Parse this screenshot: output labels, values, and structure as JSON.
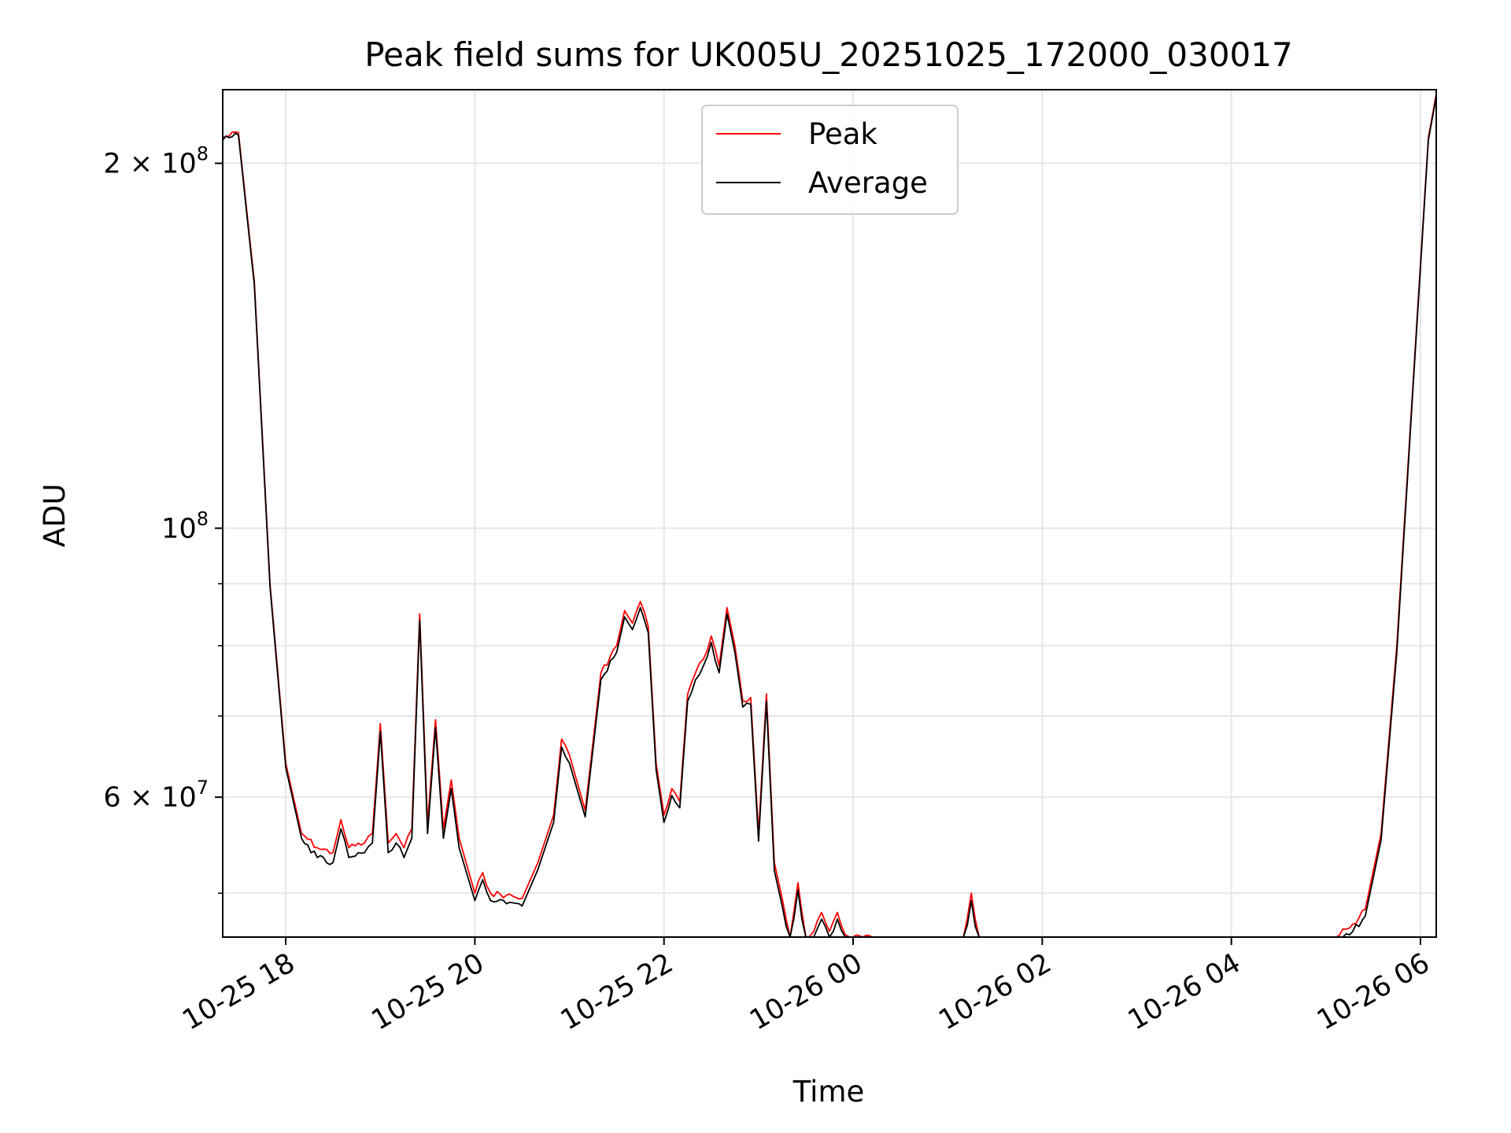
{
  "chart_data": {
    "type": "line",
    "title": "Peak field sums for UK005U_20251025_172000_030017",
    "xlabel": "Time",
    "ylabel": "ADU",
    "yscale": "log",
    "ylim": [
      46000000,
      230000000
    ],
    "xlim": [
      "2025-10-25 17:20",
      "2025-10-26 06:10"
    ],
    "grid": true,
    "legend_position": "top-center",
    "x_ticks": [
      {
        "t": "2025-10-25 18:00",
        "label": "10-25 18"
      },
      {
        "t": "2025-10-25 20:00",
        "label": "10-25 20"
      },
      {
        "t": "2025-10-25 22:00",
        "label": "10-25 22"
      },
      {
        "t": "2025-10-26 00:00",
        "label": "10-26 00"
      },
      {
        "t": "2025-10-26 02:00",
        "label": "10-26 02"
      },
      {
        "t": "2025-10-26 04:00",
        "label": "10-26 04"
      },
      {
        "t": "2025-10-26 06:00",
        "label": "10-26 06"
      }
    ],
    "y_major_ticks": [
      {
        "v": 60000000,
        "mant": "6",
        "exp": "7"
      },
      {
        "v": 100000000,
        "mant": "",
        "exp": "8"
      },
      {
        "v": 200000000,
        "mant": "2",
        "exp": "8"
      }
    ],
    "y_minor_ticks": [
      50000000,
      70000000,
      80000000,
      90000000
    ],
    "x": [
      "2025-10-25 17:20",
      "2025-10-25 17:30",
      "2025-10-25 17:40",
      "2025-10-25 17:50",
      "2025-10-25 18:00",
      "2025-10-25 18:10",
      "2025-10-25 18:20",
      "2025-10-25 18:30",
      "2025-10-25 18:35",
      "2025-10-25 18:40",
      "2025-10-25 18:50",
      "2025-10-25 18:55",
      "2025-10-25 19:00",
      "2025-10-25 19:05",
      "2025-10-25 19:10",
      "2025-10-25 19:15",
      "2025-10-25 19:20",
      "2025-10-25 19:25",
      "2025-10-25 19:30",
      "2025-10-25 19:35",
      "2025-10-25 19:40",
      "2025-10-25 19:45",
      "2025-10-25 19:50",
      "2025-10-25 20:00",
      "2025-10-25 20:05",
      "2025-10-25 20:10",
      "2025-10-25 20:20",
      "2025-10-25 20:30",
      "2025-10-25 20:40",
      "2025-10-25 20:50",
      "2025-10-25 20:55",
      "2025-10-25 21:00",
      "2025-10-25 21:10",
      "2025-10-25 21:20",
      "2025-10-25 21:30",
      "2025-10-25 21:35",
      "2025-10-25 21:40",
      "2025-10-25 21:45",
      "2025-10-25 21:50",
      "2025-10-25 21:55",
      "2025-10-25 22:00",
      "2025-10-25 22:05",
      "2025-10-25 22:10",
      "2025-10-25 22:15",
      "2025-10-25 22:20",
      "2025-10-25 22:25",
      "2025-10-25 22:30",
      "2025-10-25 22:35",
      "2025-10-25 22:40",
      "2025-10-25 22:45",
      "2025-10-25 22:50",
      "2025-10-25 22:55",
      "2025-10-25 23:00",
      "2025-10-25 23:05",
      "2025-10-25 23:10",
      "2025-10-25 23:15",
      "2025-10-25 23:20",
      "2025-10-25 23:25",
      "2025-10-25 23:30",
      "2025-10-25 23:35",
      "2025-10-25 23:40",
      "2025-10-25 23:45",
      "2025-10-25 23:50",
      "2025-10-25 23:55",
      "2025-10-26 00:00",
      "2025-10-26 00:30",
      "2025-10-26 01:00",
      "2025-10-26 01:10",
      "2025-10-26 01:15",
      "2025-10-26 01:20",
      "2025-10-26 02:00",
      "2025-10-26 03:00",
      "2025-10-26 03:30",
      "2025-10-26 04:00",
      "2025-10-26 04:30",
      "2025-10-26 05:00",
      "2025-10-26 05:15",
      "2025-10-26 05:25",
      "2025-10-26 05:35",
      "2025-10-26 05:45",
      "2025-10-26 05:55",
      "2025-10-26 06:05",
      "2025-10-26 06:10"
    ],
    "series": [
      {
        "name": "Peak",
        "color": "#ff0000",
        "values": [
          210000000,
          212000000,
          160000000,
          90000000,
          64000000,
          56000000,
          54500000,
          54000000,
          57500000,
          54500000,
          55000000,
          56000000,
          69000000,
          55000000,
          56000000,
          54500000,
          56500000,
          85000000,
          57000000,
          69500000,
          56500000,
          62000000,
          55500000,
          50000000,
          52000000,
          50000000,
          49800000,
          49500000,
          53000000,
          58000000,
          67000000,
          65000000,
          58500000,
          76000000,
          80000000,
          85500000,
          83500000,
          87000000,
          83000000,
          64000000,
          58000000,
          61000000,
          59500000,
          73000000,
          76000000,
          78000000,
          81500000,
          77000000,
          86000000,
          80000000,
          72000000,
          72500000,
          56000000,
          73000000,
          53000000,
          49500000,
          45800000,
          51000000,
          45600000,
          46500000,
          48200000,
          46500000,
          48200000,
          46200000,
          46000000,
          45700000,
          45500000,
          45500000,
          50000000,
          45300000,
          45100000,
          45000000,
          44800000,
          45000000,
          45300000,
          45600000,
          46800000,
          48500000,
          56000000,
          80000000,
          130000000,
          210000000,
          228000000
        ]
      },
      {
        "name": "Average",
        "color": "#000000",
        "values": [
          209000000,
          211000000,
          159000000,
          89500000,
          63500000,
          55500000,
          53500000,
          53000000,
          56500000,
          53500000,
          54000000,
          55000000,
          68000000,
          54000000,
          55000000,
          53500000,
          55500000,
          84000000,
          56000000,
          68500000,
          55500000,
          61000000,
          54500000,
          49300000,
          51300000,
          49300000,
          49000000,
          48800000,
          52300000,
          57200000,
          66000000,
          64000000,
          57800000,
          75000000,
          79000000,
          84500000,
          82500000,
          86000000,
          82000000,
          63200000,
          57200000,
          60200000,
          58800000,
          72000000,
          75000000,
          77000000,
          80500000,
          76000000,
          85000000,
          79000000,
          71200000,
          71600000,
          55200000,
          72000000,
          52200000,
          48800000,
          45200000,
          50300000,
          45000000,
          45900000,
          47600000,
          45900000,
          47600000,
          45600000,
          45400000,
          45100000,
          44900000,
          44900000,
          49300000,
          44700000,
          44500000,
          44400000,
          44200000,
          44400000,
          44700000,
          45000000,
          46200000,
          47900000,
          55300000,
          79000000,
          129000000,
          209000000,
          227000000
        ]
      }
    ]
  }
}
